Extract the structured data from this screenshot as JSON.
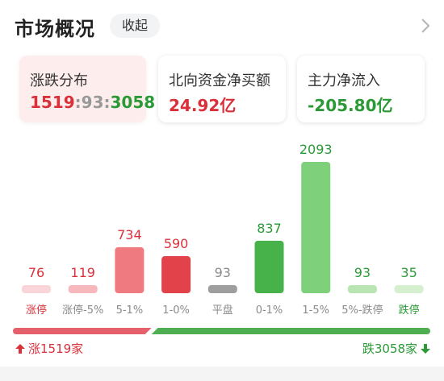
{
  "header": {
    "title": "市场概况",
    "collapse_label": "收起",
    "chevron_icon": "chevron-right-icon"
  },
  "cards": {
    "distribution": {
      "label": "涨跌分布",
      "up": "1519",
      "sep1": ":",
      "flat": "93",
      "sep2": ":",
      "down": "3058"
    },
    "northbound": {
      "label": "北向资金净买额",
      "value": "24.92亿"
    },
    "main_flow": {
      "label": "主力净流入",
      "value": "-205.80亿"
    }
  },
  "colors": {
    "red": "#d9303a",
    "green": "#2b9a36",
    "limit_up_bar": "#f9d4d8",
    "up_5_bar": "#f6b7bd",
    "up_5_1_bar": "#ef7b80",
    "up_1_0_bar": "#e2424a",
    "flat_bar": "#9e9e9e",
    "down_0_1_bar": "#48b24a",
    "down_1_5_bar": "#7fd07a",
    "down_5_bar": "#b8e5b2",
    "limit_down_bar": "#d5efcf"
  },
  "chart_data": {
    "type": "bar",
    "categories": [
      "涨停",
      "涨停-5%",
      "5-1%",
      "1-0%",
      "平盘",
      "0-1%",
      "1-5%",
      "5%-跌停",
      "跌停"
    ],
    "values": [
      76,
      119,
      734,
      590,
      93,
      837,
      2093,
      93,
      35
    ],
    "value_labels": [
      "76",
      "119",
      "734",
      "590",
      "93",
      "837",
      "2093",
      "93",
      "35"
    ],
    "value_label_colors": [
      "red",
      "red",
      "red",
      "red",
      "gray",
      "green",
      "green",
      "green",
      "green"
    ],
    "category_label_colors": [
      "red",
      "gray",
      "gray",
      "gray",
      "gray",
      "gray",
      "gray",
      "gray",
      "green"
    ],
    "bar_colors": [
      "#f9d4d8",
      "#f6b7bd",
      "#ef7b80",
      "#e2424a",
      "#9e9e9e",
      "#48b24a",
      "#7fd07a",
      "#b8e5b2",
      "#d5efcf"
    ]
  },
  "summary": {
    "up_fraction": 0.332,
    "up_text": "涨1519家",
    "down_text": "跌3058家",
    "up_icon": "arrow-up-icon",
    "down_icon": "arrow-down-icon"
  }
}
